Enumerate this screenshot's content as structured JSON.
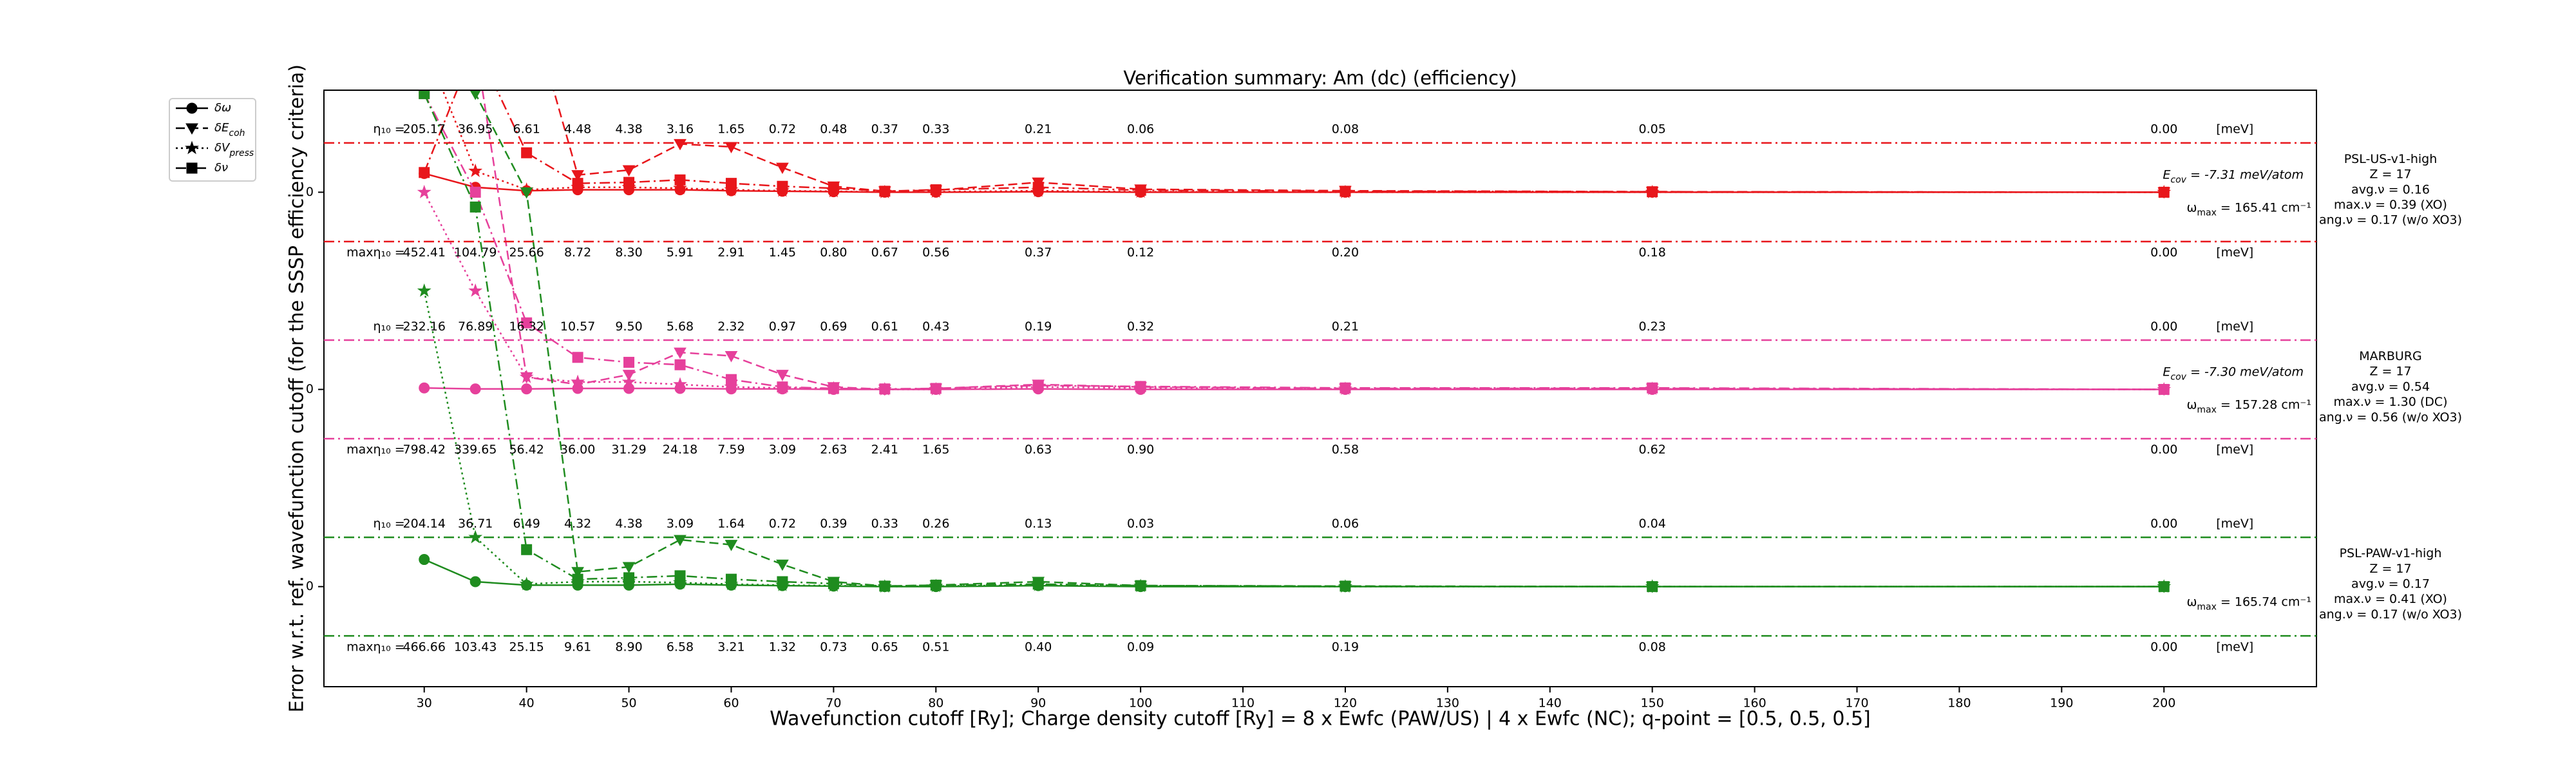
{
  "chart_data": {
    "type": "line",
    "title": "Verification summary: Am (dc) (efficiency)",
    "x_label": "Wavefunction cutoff [Ry]; Charge density cutoff [Ry] = 8 x Ewfc (PAW/US) | 4 x Ewfc (NC); q-point = [0.5, 0.5, 0.5]",
    "y_label": "Error w.r.t. ref. wavefunction cutoff (for the SSSP efficiency criteria)",
    "x": [
      30,
      35,
      40,
      45,
      50,
      55,
      60,
      65,
      70,
      75,
      80,
      90,
      100,
      120,
      150,
      200
    ],
    "xlim": [
      20.2,
      214.9
    ],
    "xticks": [
      30,
      40,
      50,
      60,
      70,
      80,
      90,
      100,
      110,
      120,
      130,
      140,
      150,
      160,
      170,
      180,
      190,
      200
    ],
    "ylim": [
      -2.03,
      10.07
    ],
    "yticks": [
      {
        "value": 0,
        "label": "0"
      },
      {
        "value": 4,
        "label": "0"
      },
      {
        "value": 8,
        "label": "0"
      }
    ],
    "threshold": 1,
    "eta_prefix": "η₁₀ =",
    "max_eta_prefix": "maxη₁₀ =",
    "unit_label": "[meV]",
    "ecov_symbol": "E",
    "ecov_sub": "cov",
    "omega_symbol": "ω",
    "omega_sub": "max",
    "legend_position": "upper left",
    "series_styles": [
      {
        "name": "δω",
        "marker": "circle",
        "dash": "solid"
      },
      {
        "name": "δE",
        "sub": "coh",
        "marker": "triangle-down",
        "dash": "dashed"
      },
      {
        "name": "δV",
        "sub": "press",
        "marker": "star",
        "dash": "dotted"
      },
      {
        "name": "δν",
        "marker": "square",
        "dash": "dashdot"
      }
    ],
    "panels": [
      {
        "offset": 8,
        "color": "#e8161b",
        "info": [
          "PSL-US-v1-high",
          "Z = 17",
          "avg.ν = 0.16",
          "max.ν = 0.39 (XO)",
          "ang.ν = 0.17 (w/o XO3)"
        ],
        "ecov": " = -7.31 meV/atom",
        "omega": " = 165.41 cm⁻¹",
        "eta_labels": [
          "205.17",
          "36.95",
          "6.61",
          "4.48",
          "4.38",
          "3.16",
          "1.65",
          "0.72",
          "0.48",
          "0.37",
          "0.33",
          "0.21",
          "0.06",
          "0.08",
          "0.05",
          "0.00"
        ],
        "max_eta_labels": [
          "452.41",
          "104.79",
          "25.66",
          "8.72",
          "8.30",
          "5.91",
          "2.91",
          "1.45",
          "0.80",
          "0.67",
          "0.56",
          "0.37",
          "0.12",
          "0.20",
          "0.18",
          "0.00"
        ],
        "series": [
          {
            "values": [
              0.38,
              0.1,
              0.03,
              0.05,
              0.05,
              0.05,
              0.03,
              0.02,
              0.01,
              0,
              0,
              0.01,
              0,
              0,
              0,
              0
            ]
          },
          {
            "values": [
              10,
              6,
              4,
              0.35,
              0.45,
              0.98,
              0.92,
              0.5,
              0.12,
              0.02,
              0.04,
              0.2,
              0.06,
              0.03,
              0.01,
              0
            ]
          },
          {
            "values": [
              3,
              0.43,
              0.05,
              0.1,
              0.1,
              0.08,
              0.05,
              0.03,
              0.02,
              0,
              0.01,
              0.03,
              0.01,
              0,
              0,
              0
            ]
          },
          {
            "values": [
              0.4,
              3,
              0.8,
              0.18,
              0.2,
              0.25,
              0.18,
              0.12,
              0.08,
              0.02,
              0.05,
              0.1,
              0.04,
              0.02,
              0.01,
              0
            ]
          }
        ]
      },
      {
        "offset": 4,
        "color": "#e6409b",
        "info": [
          "MARBURG",
          "Z = 17",
          "avg.ν = 0.54",
          "max.ν = 1.30 (DC)",
          "ang.ν = 0.56 (w/o XO3)"
        ],
        "ecov": " = -7.30 meV/atom",
        "omega": " = 157.28 cm⁻¹",
        "eta_labels": [
          "232.16",
          "76.89",
          "16.32",
          "10.57",
          "9.50",
          "5.68",
          "2.32",
          "0.97",
          "0.69",
          "0.61",
          "0.43",
          "0.19",
          "0.32",
          "0.21",
          "0.23",
          "0.00"
        ],
        "max_eta_labels": [
          "798.42",
          "339.65",
          "56.42",
          "36.00",
          "31.29",
          "24.18",
          "7.59",
          "3.09",
          "2.63",
          "2.41",
          "1.65",
          "0.63",
          "0.90",
          "0.58",
          "0.62",
          "0.00"
        ],
        "series": [
          {
            "values": [
              0.03,
              0.01,
              0.01,
              0.02,
              0.02,
              0.02,
              0.01,
              0.01,
              0,
              0,
              0,
              0.01,
              0,
              0,
              0,
              0
            ]
          },
          {
            "values": [
              10,
              7,
              0.25,
              0.1,
              0.3,
              0.75,
              0.68,
              0.3,
              0.05,
              0,
              0.02,
              0.1,
              0.05,
              0.02,
              0.02,
              0
            ]
          },
          {
            "values": [
              4,
              2,
              0.25,
              0.15,
              0.15,
              0.1,
              0.05,
              0.03,
              0.02,
              0,
              0,
              0.05,
              0.03,
              0.01,
              0.01,
              0
            ]
          },
          {
            "values": [
              6,
              4,
              1.35,
              0.65,
              0.55,
              0.5,
              0.2,
              0.05,
              0.02,
              0.01,
              0.02,
              0.08,
              0.06,
              0.03,
              0.03,
              0
            ]
          }
        ]
      },
      {
        "offset": 0,
        "color": "#1f8c1f",
        "info": [
          "PSL-PAW-v1-high",
          "Z = 17",
          "avg.ν = 0.17",
          "max.ν = 0.41 (XO)",
          "ang.ν = 0.17 (w/o XO3)"
        ],
        "omega": " = 165.74 cm⁻¹",
        "eta_labels": [
          "204.14",
          "36.71",
          "6.49",
          "4.32",
          "4.38",
          "3.09",
          "1.64",
          "0.72",
          "0.39",
          "0.33",
          "0.26",
          "0.13",
          "0.03",
          "0.06",
          "0.04",
          "0.00"
        ],
        "max_eta_labels": [
          "466.66",
          "103.43",
          "25.15",
          "9.61",
          "8.90",
          "6.58",
          "3.21",
          "1.32",
          "0.73",
          "0.65",
          "0.51",
          "0.40",
          "0.09",
          "0.19",
          "0.08",
          "0.00"
        ],
        "series": [
          {
            "values": [
              0.55,
              0.1,
              0.03,
              0.03,
              0.03,
              0.05,
              0.03,
              0.02,
              0.01,
              0,
              0,
              0.02,
              0,
              0,
              0,
              0
            ]
          },
          {
            "values": [
              12,
              10,
              8,
              0.3,
              0.4,
              0.95,
              0.85,
              0.45,
              0.1,
              0.01,
              0.03,
              0.1,
              0.02,
              0.01,
              0,
              0
            ]
          },
          {
            "values": [
              6,
              1,
              0.05,
              0.1,
              0.1,
              0.08,
              0.05,
              0.03,
              0.02,
              0,
              0.01,
              0.03,
              0.01,
              0,
              0,
              0
            ]
          },
          {
            "values": [
              10,
              7.7,
              0.75,
              0.15,
              0.18,
              0.22,
              0.15,
              0.1,
              0.06,
              0.01,
              0.03,
              0.05,
              0.02,
              0.01,
              0,
              0
            ]
          }
        ]
      }
    ]
  }
}
